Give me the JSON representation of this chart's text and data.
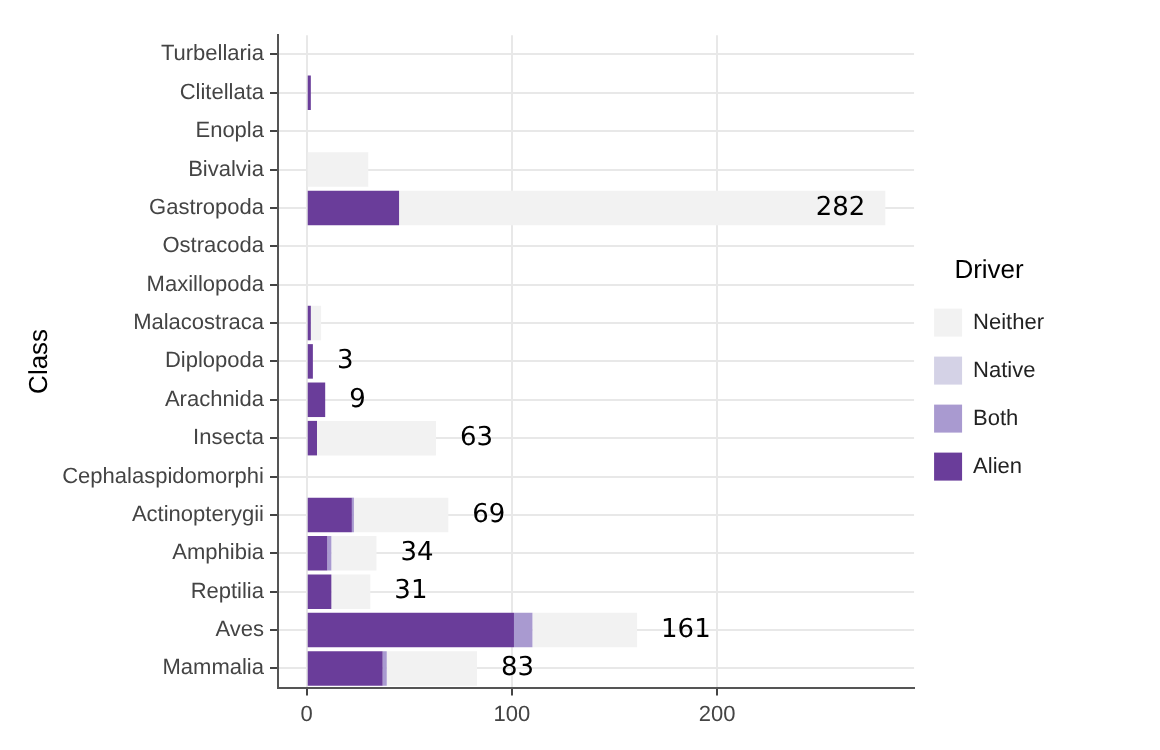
{
  "chart_data": {
    "type": "bar",
    "orientation": "horizontal",
    "stacked": true,
    "ylabel": "Class",
    "legend_title": "Driver",
    "legend": "right",
    "grid": true,
    "categories": [
      "Turbellaria",
      "Clitellata",
      "Enopla",
      "Bivalvia",
      "Gastropoda",
      "Ostracoda",
      "Maxillopoda",
      "Malacostraca",
      "Diplopoda",
      "Arachnida",
      "Insecta",
      "Cephalaspidomorphi",
      "Actinopterygii",
      "Amphibia",
      "Reptilia",
      "Aves",
      "Mammalia"
    ],
    "series": [
      {
        "name": "Alien",
        "color": "#6a3d9a",
        "values": [
          0,
          2,
          0,
          0,
          45,
          0,
          0,
          2,
          3,
          9,
          5,
          0,
          22,
          10,
          12,
          101,
          37
        ]
      },
      {
        "name": "Both",
        "color": "#a99ad0",
        "values": [
          0,
          0,
          0,
          0,
          0,
          0,
          0,
          0,
          0,
          0,
          0,
          0,
          1,
          2,
          0,
          9,
          2
        ]
      },
      {
        "name": "Native",
        "color": "#d4d2e6",
        "values": [
          0,
          0,
          0,
          0,
          0,
          0,
          0,
          null,
          0,
          0,
          0,
          0,
          0,
          0,
          0,
          null,
          null
        ]
      },
      {
        "name": "Neither",
        "color": "#f2f2f2",
        "values": [
          0,
          0,
          null,
          30,
          237,
          0,
          0,
          5,
          0,
          0,
          58,
          0,
          46,
          22,
          19,
          51,
          44
        ]
      }
    ],
    "totals": [
      null,
      null,
      null,
      null,
      "282",
      null,
      null,
      null,
      "3",
      "9",
      "63",
      null,
      "69",
      "34",
      "31",
      "161",
      "83"
    ],
    "xlim": [
      -14,
      296
    ],
    "xticks": [
      0,
      100,
      200
    ]
  }
}
